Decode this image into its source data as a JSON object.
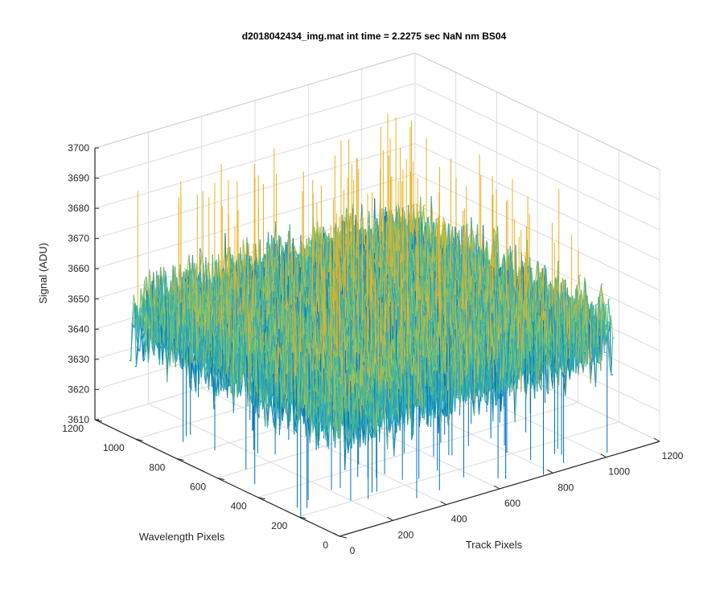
{
  "chart_data": {
    "type": "surface",
    "title": "d2018042434_img.mat int time = 2.2275 sec  NaN nm BS04",
    "xlabel": "Track Pixels",
    "ylabel": "Wavelength Pixels",
    "zlabel": "Signal (ADU)",
    "xlim": [
      0,
      1200
    ],
    "ylim": [
      0,
      1200
    ],
    "zlim": [
      3610,
      3700
    ],
    "x_ticks": [
      "0",
      "200",
      "400",
      "600",
      "800",
      "1000",
      "1200"
    ],
    "y_ticks": [
      "0",
      "200",
      "400",
      "600",
      "800",
      "1000",
      "1200"
    ],
    "z_ticks": [
      "3610",
      "3620",
      "3630",
      "3640",
      "3650",
      "3660",
      "3670",
      "3680",
      "3690",
      "3700"
    ],
    "data_extent": {
      "x": [
        0,
        1024
      ],
      "y": [
        0,
        1024
      ]
    },
    "signal_mean": 3650,
    "signal_noise_range": [
      3615,
      3695
    ],
    "grid": true,
    "colormap": [
      "#0072bd",
      "#20a0c8",
      "#40b49c",
      "#7fc36a",
      "#c9b844",
      "#edb120"
    ]
  }
}
